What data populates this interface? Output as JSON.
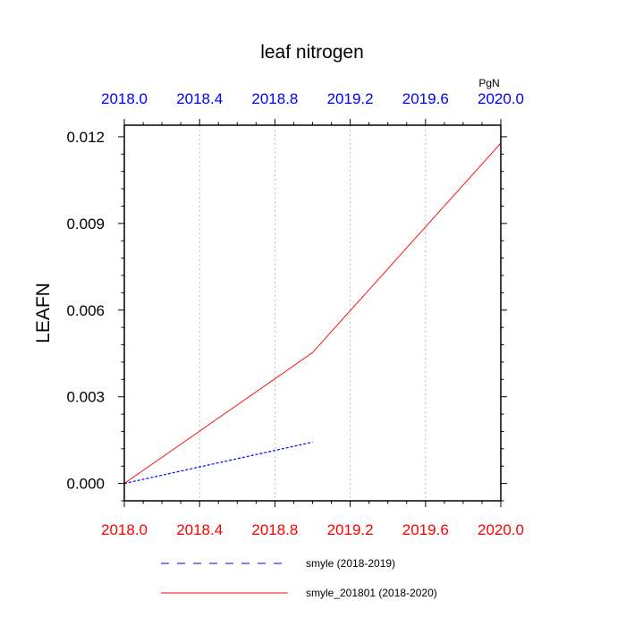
{
  "chart_data": {
    "type": "line",
    "title": "leaf nitrogen",
    "ylabel": "LEAFN",
    "units": "PgN",
    "xlim": [
      2018.0,
      2020.0
    ],
    "ylim": [
      -0.0006,
      0.0124
    ],
    "bottom_ticks": [
      "2018.0",
      "2018.4",
      "2018.8",
      "2019.2",
      "2019.6",
      "2020.0"
    ],
    "top_ticks": [
      "2018.0",
      "2018.4",
      "2018.8",
      "2019.2",
      "2019.6",
      "2020.0"
    ],
    "y_ticks": [
      "0.000",
      "0.003",
      "0.006",
      "0.009",
      "0.012"
    ],
    "grid": "vertical dotted",
    "legend_position": "bottom",
    "colors": {
      "bottom_axis": "#ff0000",
      "top_axis": "#0000ff"
    },
    "series": [
      {
        "name": "smyle (2018-2019)",
        "color": "#0000ff",
        "style": "dashed",
        "x": [
          2018.0,
          2019.0
        ],
        "y": [
          0.0,
          0.00143
        ]
      },
      {
        "name": "smyle_201801 (2018-2020)",
        "color": "#ff0000",
        "style": "solid",
        "x": [
          2018.0,
          2019.0,
          2020.0
        ],
        "y": [
          0.0,
          0.00453,
          0.01178
        ]
      }
    ]
  }
}
